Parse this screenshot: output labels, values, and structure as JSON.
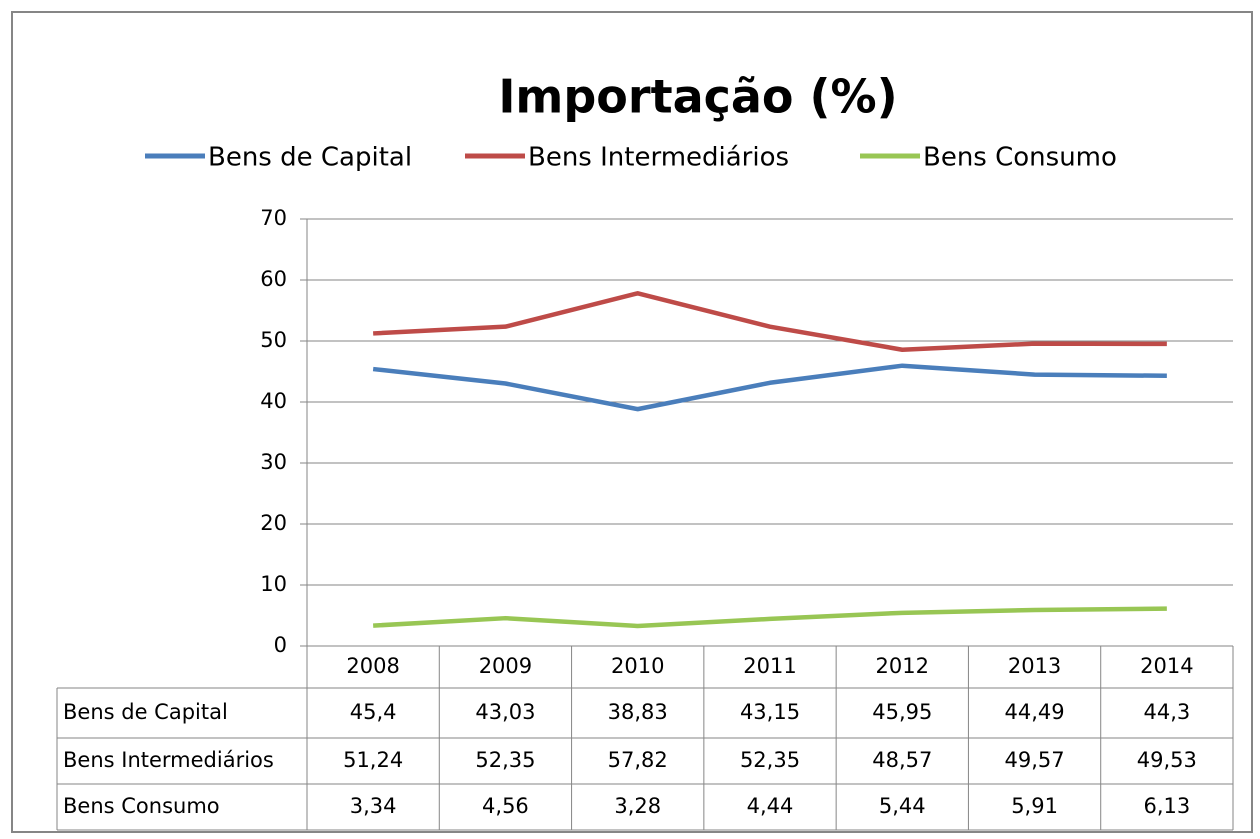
{
  "chart_data": {
    "type": "line",
    "title": "Importação (%)",
    "categories": [
      "2008",
      "2009",
      "2010",
      "2011",
      "2012",
      "2013",
      "2014"
    ],
    "series": [
      {
        "name": "Bens de Capital",
        "color": "#4a7ebb",
        "values": [
          45.4,
          43.03,
          38.83,
          43.15,
          45.95,
          44.49,
          44.3
        ],
        "value_labels": [
          "45,4",
          "43,03",
          "38,83",
          "43,15",
          "45,95",
          "44,49",
          "44,3"
        ]
      },
      {
        "name": "Bens Intermediários",
        "color": "#be4b48",
        "values": [
          51.24,
          52.35,
          57.82,
          52.35,
          48.57,
          49.57,
          49.53
        ],
        "value_labels": [
          "51,24",
          "52,35",
          "57,82",
          "52,35",
          "48,57",
          "49,57",
          "49,53"
        ]
      },
      {
        "name": "Bens Consumo",
        "color": "#98c654",
        "values": [
          3.34,
          4.56,
          3.28,
          4.44,
          5.44,
          5.91,
          6.13
        ],
        "value_labels": [
          "3,34",
          "4,56",
          "3,28",
          "4,44",
          "5,44",
          "5,91",
          "6,13"
        ]
      }
    ],
    "ylim": [
      0,
      70
    ],
    "yticks": [
      0,
      10,
      20,
      30,
      40,
      50,
      60,
      70
    ],
    "grid": true,
    "legend": "top"
  }
}
